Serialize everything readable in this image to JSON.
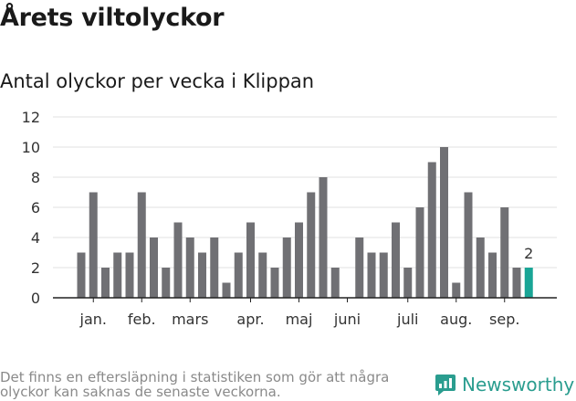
{
  "header": {
    "title": "Årets viltolyckor",
    "subtitle": "Antal olyckor per vecka i Klippan"
  },
  "footer": {
    "note": "Det finns en eftersläpning i statistiken som gör att några olyckor kan saknas de senaste veckorna.",
    "brand": "Newsworthy"
  },
  "colors": {
    "bar": "#707074",
    "highlight": "#1aa596",
    "grid": "#e0e0e0",
    "axis": "#222222",
    "brand": "#2a9d8f"
  },
  "chart_data": {
    "type": "bar",
    "title": "Antal olyckor per vecka i Klippan",
    "xlabel": "",
    "ylabel": "",
    "ylim": [
      0,
      12
    ],
    "yticks": [
      0,
      2,
      4,
      6,
      8,
      10,
      12
    ],
    "grid": true,
    "values": [
      3,
      7,
      2,
      3,
      3,
      7,
      4,
      2,
      5,
      4,
      3,
      4,
      1,
      3,
      5,
      3,
      2,
      4,
      5,
      7,
      8,
      2,
      0,
      4,
      3,
      3,
      5,
      2,
      6,
      9,
      10,
      1,
      7,
      4,
      3,
      6,
      2,
      2
    ],
    "highlight_index": 37,
    "highlight_label": "2",
    "month_labels": [
      {
        "label": "jan.",
        "week": 1
      },
      {
        "label": "feb.",
        "week": 5
      },
      {
        "label": "mars",
        "week": 9
      },
      {
        "label": "apr.",
        "week": 14
      },
      {
        "label": "maj",
        "week": 18
      },
      {
        "label": "juni",
        "week": 22
      },
      {
        "label": "juli",
        "week": 27
      },
      {
        "label": "aug.",
        "week": 31
      },
      {
        "label": "sep.",
        "week": 35
      }
    ]
  }
}
